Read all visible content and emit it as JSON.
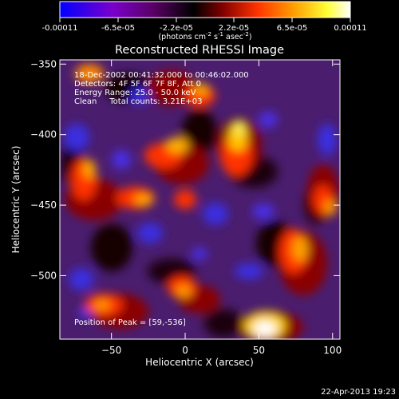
{
  "colorbar": {
    "tick_labels": [
      "-0.00011",
      "-6.5e-05",
      "-2.2e-05",
      "2.2e-05",
      "6.5e-05",
      "0.00011"
    ],
    "unit_parts": {
      "open": "(photons cm",
      "exp_cm": "-2",
      "s": " s",
      "exp_s": "-1",
      "asec": " asec",
      "exp_asec": "-2",
      "close": ")"
    },
    "range": [
      -0.00011,
      0.00011
    ],
    "colormap": [
      "#0000ff",
      "#7a00cc",
      "#5a0066",
      "#000000",
      "#800000",
      "#ff3300",
      "#ff9900",
      "#ffff33",
      "#ffffff"
    ]
  },
  "plot": {
    "title": "Reconstructed RHESSI Image",
    "xlabel": "Heliocentric X (arcsec)",
    "ylabel": "Heliocentric Y (arcsec)",
    "xlim": [
      -85,
      105
    ],
    "ylim": [
      -545,
      -347
    ],
    "x_ticks": [
      {
        "value": -50,
        "label": "−50"
      },
      {
        "value": 0,
        "label": "0"
      },
      {
        "value": 50,
        "label": "50"
      },
      {
        "value": 100,
        "label": "100"
      }
    ],
    "y_ticks": [
      {
        "value": -350,
        "label": "−350"
      },
      {
        "value": -400,
        "label": "−400"
      },
      {
        "value": -450,
        "label": "−450"
      },
      {
        "value": -500,
        "label": "−500"
      }
    ]
  },
  "annotations": {
    "lines": [
      "18-Dec-2002 00:41:32.000 to 00:46:02.000",
      "Detectors: 4F 5F 6F 7F 8F, Att 0",
      "Energy Range: 25.0 - 50.0 keV",
      "Clean     Total counts: 3.21E+03"
    ],
    "peak": "Position of Peak = [59,-536]"
  },
  "timestamp": "22-Apr-2013 19:23"
}
